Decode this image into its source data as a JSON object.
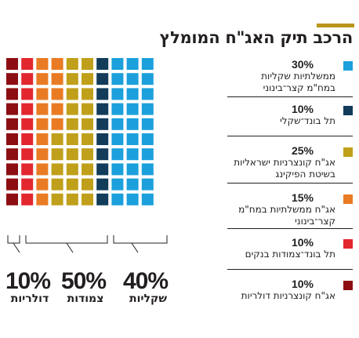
{
  "title": "הרכב תיק האג\"ח המומלץ",
  "colors": {
    "accent": "#b8961a",
    "light_blue": "#1ba0dc",
    "dark_navy": "#123c5a",
    "gold": "#c0a01a",
    "orange": "#e97b24",
    "red": "#e2272f",
    "dark_red": "#8c0e12"
  },
  "legend": [
    {
      "pct": "30%",
      "line1": "ממשלתיות שקליות",
      "line2": "במח\"מ קצר־בינוני",
      "color": "#1ba0dc"
    },
    {
      "pct": "10%",
      "line1": "תל בונד־שקלי",
      "line2": "",
      "color": "#123c5a"
    },
    {
      "pct": "25%",
      "line1": "אג\"ח קונצרניות ישראליות",
      "line2": "בשיטת הפיקינג",
      "color": "#c0a01a"
    },
    {
      "pct": "15%",
      "line1": "אג\"ח ממשלתיות במח\"מ",
      "line2": "קצר־בינוני",
      "color": "#e97b24"
    },
    {
      "pct": "10%",
      "line1": "תל בונד־צמודות בנקים",
      "line2": "",
      "color": "#e2272f"
    },
    {
      "pct": "10%",
      "line1": "אג\"ח קונצרניות דולריות",
      "line2": "",
      "color": "#8c0e12"
    }
  ],
  "groups": {
    "dollar": {
      "pct": "10%",
      "label": "דולריות"
    },
    "linked": {
      "pct": "50%",
      "label": "צמודות"
    },
    "shekel": {
      "pct": "40%",
      "label": "שקליות"
    }
  },
  "chart_data": {
    "type": "waffle",
    "title": "הרכב תיק האג\"ח המומלץ",
    "grid": {
      "rows": 10,
      "cols": 10
    },
    "series": [
      {
        "name": "אג\"ח קונצרניות דולריות",
        "value": 10,
        "color": "#8c0e12"
      },
      {
        "name": "תל בונד־צמודות בנקים",
        "value": 10,
        "color": "#e2272f"
      },
      {
        "name": "אג\"ח ממשלתיות במח\"מ קצר־בינוני",
        "value": 15,
        "color": "#e97b24"
      },
      {
        "name": "אג\"ח קונצרניות ישראליות בשיטת הפיקינג",
        "value": 25,
        "color": "#c0a01a"
      },
      {
        "name": "תל בונד־שקלי",
        "value": 10,
        "color": "#123c5a"
      },
      {
        "name": "ממשלתיות שקליות במח\"מ קצר־בינוני",
        "value": 30,
        "color": "#1ba0dc"
      }
    ],
    "groups": [
      {
        "name": "דולריות",
        "value": 10
      },
      {
        "name": "צמודות",
        "value": 50
      },
      {
        "name": "שקליות",
        "value": 40
      }
    ]
  }
}
